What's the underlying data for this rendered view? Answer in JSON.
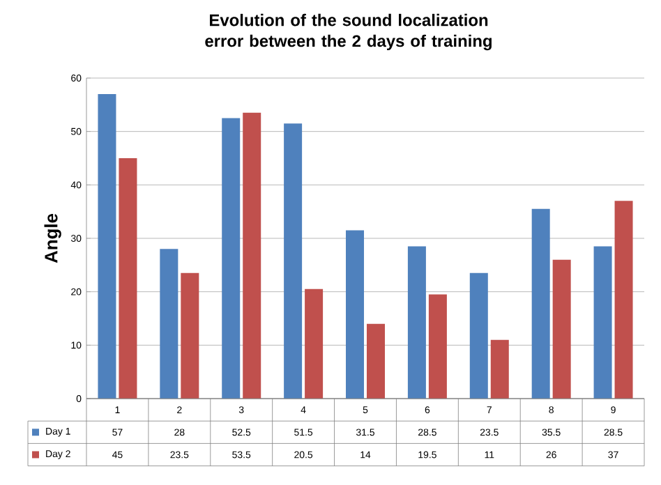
{
  "chart_data": {
    "type": "bar",
    "title": "Evolution of the sound localization error between the 2 days of training",
    "ylabel": "Angle",
    "categories": [
      "1",
      "2",
      "3",
      "4",
      "5",
      "6",
      "7",
      "8",
      "9"
    ],
    "series": [
      {
        "name": "Day 1",
        "color": "#4f81bd",
        "values": [
          57,
          28,
          52.5,
          51.5,
          31.5,
          28.5,
          23.5,
          35.5,
          28.5
        ]
      },
      {
        "name": "Day 2",
        "color": "#c0504d",
        "values": [
          45,
          23.5,
          53.5,
          20.5,
          14,
          19.5,
          11,
          26,
          37
        ]
      }
    ],
    "ylim": [
      0,
      60
    ],
    "yticks": [
      0,
      10,
      20,
      30,
      40,
      50,
      60
    ],
    "grid": "y",
    "data_labels": true,
    "legend": "bottom left"
  }
}
